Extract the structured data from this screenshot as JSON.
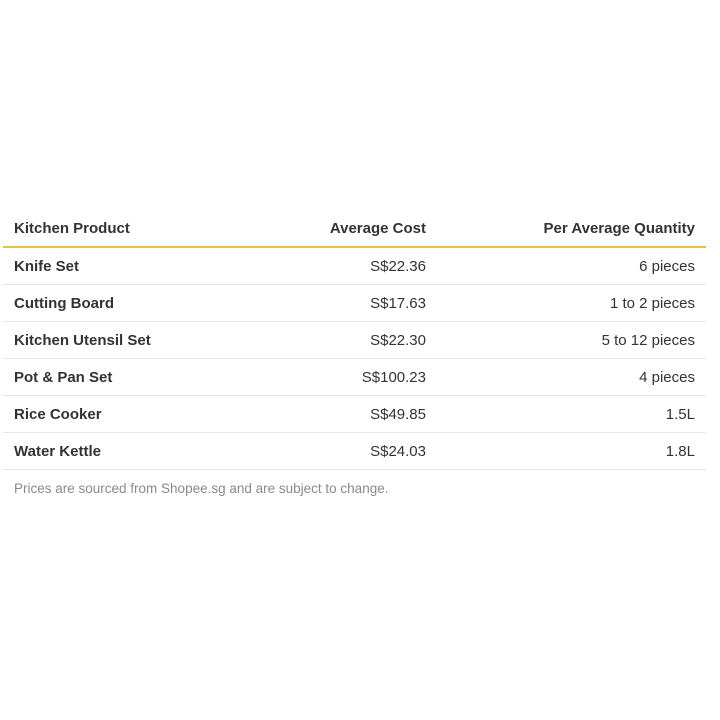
{
  "table": {
    "headers": {
      "product": "Kitchen Product",
      "cost": "Average Cost",
      "quantity": "Per Average Quantity"
    },
    "rows": [
      {
        "product": "Knife Set",
        "cost": "S$22.36",
        "quantity": "6 pieces"
      },
      {
        "product": "Cutting Board",
        "cost": "S$17.63",
        "quantity": "1 to 2 pieces"
      },
      {
        "product": "Kitchen Utensil Set",
        "cost": "S$22.30",
        "quantity": "5 to 12 pieces"
      },
      {
        "product": "Pot & Pan Set",
        "cost": "S$100.23",
        "quantity": "4 pieces"
      },
      {
        "product": "Rice Cooker",
        "cost": "S$49.85",
        "quantity": "1.5L"
      },
      {
        "product": "Water Kettle",
        "cost": "S$24.03",
        "quantity": "1.8L"
      }
    ],
    "accent_color": "#f0bf3a"
  },
  "note": "Prices are sourced from Shopee.sg and are subject to change."
}
